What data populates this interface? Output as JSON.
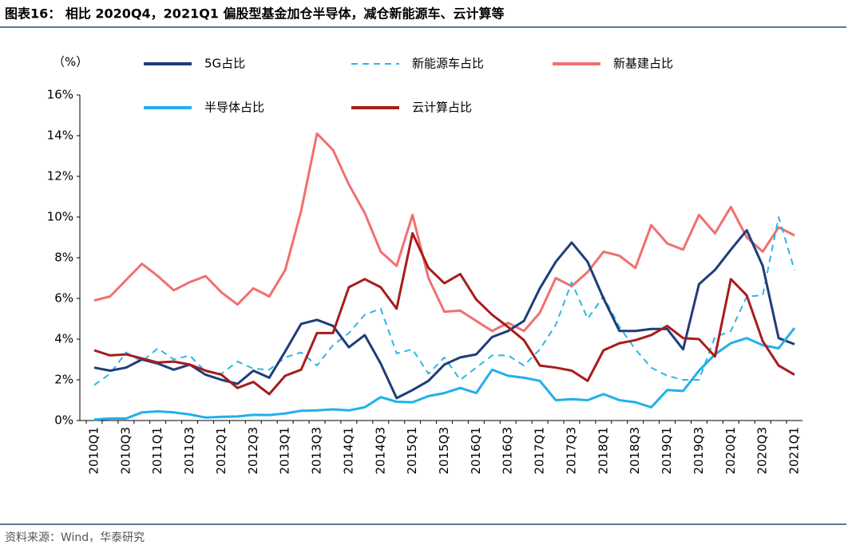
{
  "chart_data": {
    "type": "line",
    "title": "图表16：  相比 2020Q4，2021Q1 偏股型基金加仓半导体，减仓新能源车、云计算等",
    "source": "资料来源：Wind，华泰研究",
    "y_label": "（%）",
    "categories": [
      "2010Q1",
      null,
      "2010Q3",
      null,
      "2011Q1",
      null,
      "2011Q3",
      null,
      "2012Q1",
      null,
      "2012Q3",
      null,
      "2013Q1",
      null,
      "2013Q3",
      null,
      "2014Q1",
      null,
      "2014Q3",
      null,
      "2015Q1",
      null,
      "2015Q3",
      null,
      "2016Q1",
      null,
      "2016Q3",
      null,
      "2017Q1",
      null,
      "2017Q3",
      null,
      "2018Q1",
      null,
      "2018Q3",
      null,
      "2019Q1",
      null,
      "2019Q3",
      null,
      "2020Q1",
      null,
      "2020Q3",
      null,
      "2021Q1"
    ],
    "ylim": [
      0,
      16
    ],
    "yticks": [
      {
        "value": 0,
        "label": "0%"
      },
      {
        "value": 2,
        "label": "2%"
      },
      {
        "value": 4,
        "label": "4%"
      },
      {
        "value": 6,
        "label": "6%"
      },
      {
        "value": 8,
        "label": "8%"
      },
      {
        "value": 10,
        "label": "10%"
      },
      {
        "value": 12,
        "label": "12%"
      },
      {
        "value": 14,
        "label": "14%"
      },
      {
        "value": 16,
        "label": "16%"
      }
    ],
    "grid": false,
    "series": [
      {
        "name": "5G占比",
        "color": "#1f3d7a",
        "style": "solid",
        "values": [
          2.6,
          2.45,
          2.6,
          3.0,
          2.8,
          2.5,
          2.75,
          2.25,
          2.0,
          1.8,
          2.45,
          2.1,
          3.4,
          4.75,
          4.95,
          4.65,
          3.6,
          4.2,
          2.8,
          1.1,
          1.5,
          1.95,
          2.75,
          3.1,
          3.25,
          4.1,
          4.4,
          4.9,
          6.5,
          7.8,
          8.75,
          7.8,
          6.0,
          4.4,
          4.4,
          4.5,
          4.5,
          3.5,
          6.7,
          7.4,
          8.4,
          9.35,
          7.6,
          4.05,
          3.75
        ]
      },
      {
        "name": "新能源车占比",
        "color": "#2fb5e8",
        "style": "dashed",
        "values": [
          1.75,
          2.3,
          3.35,
          2.9,
          3.55,
          3.0,
          3.2,
          2.4,
          2.3,
          2.9,
          2.55,
          2.5,
          3.1,
          3.35,
          2.7,
          3.7,
          4.3,
          5.2,
          5.5,
          3.3,
          3.5,
          2.3,
          3.1,
          2.0,
          2.6,
          3.2,
          3.2,
          2.7,
          3.5,
          4.7,
          6.8,
          5.0,
          6.1,
          4.6,
          3.5,
          2.6,
          2.2,
          2.0,
          2.0,
          4.1,
          4.4,
          6.1,
          6.15,
          10.0,
          7.4
        ]
      },
      {
        "name": "新基建占比",
        "color": "#f07070",
        "style": "solid",
        "values": [
          5.9,
          6.1,
          6.9,
          7.7,
          7.1,
          6.4,
          6.8,
          7.1,
          6.3,
          5.7,
          6.5,
          6.1,
          7.4,
          10.3,
          14.1,
          13.3,
          11.6,
          10.2,
          8.3,
          7.6,
          10.1,
          7.0,
          5.35,
          5.4,
          4.9,
          4.4,
          4.8,
          4.4,
          5.3,
          7.0,
          6.6,
          7.3,
          8.3,
          8.1,
          7.5,
          9.6,
          8.7,
          8.4,
          10.1,
          9.2,
          10.5,
          9.0,
          8.3,
          9.5,
          9.1
        ]
      },
      {
        "name": "半导体占比",
        "color": "#22b0e8",
        "style": "solid",
        "values": [
          0.05,
          0.1,
          0.1,
          0.4,
          0.45,
          0.4,
          0.3,
          0.15,
          0.18,
          0.2,
          0.28,
          0.27,
          0.35,
          0.48,
          0.5,
          0.55,
          0.5,
          0.65,
          1.15,
          0.92,
          0.9,
          1.2,
          1.35,
          1.6,
          1.35,
          2.5,
          2.2,
          2.1,
          1.95,
          1.0,
          1.05,
          1.0,
          1.3,
          1.0,
          0.9,
          0.65,
          1.5,
          1.45,
          2.45,
          3.25,
          3.8,
          4.05,
          3.7,
          3.55,
          4.55
        ]
      },
      {
        "name": "云计算占比",
        "color": "#a81c1c",
        "style": "solid",
        "values": [
          3.45,
          3.2,
          3.25,
          3.05,
          2.85,
          2.9,
          2.75,
          2.45,
          2.25,
          1.6,
          1.9,
          1.3,
          2.2,
          2.5,
          4.3,
          4.3,
          6.55,
          6.95,
          6.55,
          5.5,
          9.2,
          7.5,
          6.75,
          7.2,
          5.95,
          5.2,
          4.6,
          3.95,
          2.7,
          2.6,
          2.45,
          1.95,
          3.45,
          3.8,
          3.95,
          4.2,
          4.65,
          4.05,
          4.0,
          3.15,
          6.95,
          6.15,
          3.9,
          2.7,
          2.25
        ]
      }
    ]
  }
}
